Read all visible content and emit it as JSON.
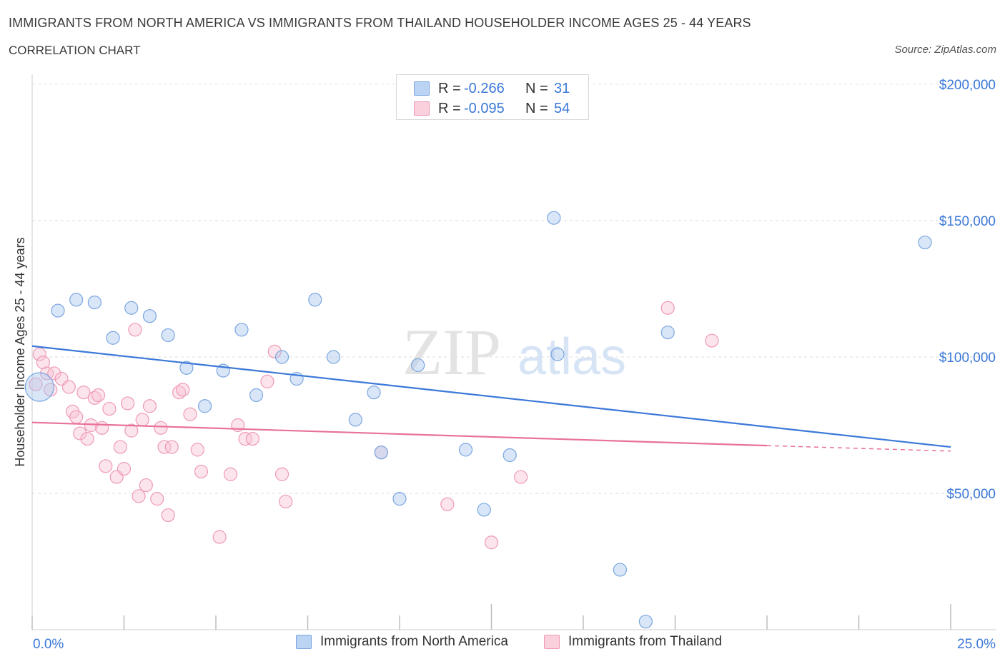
{
  "header": {
    "title": "IMMIGRANTS FROM NORTH AMERICA VS IMMIGRANTS FROM THAILAND HOUSEHOLDER INCOME AGES 25 - 44 YEARS",
    "subtitle": "CORRELATION CHART",
    "source": "Source: ZipAtlas.com"
  },
  "watermark": {
    "zip": "ZIP",
    "atlas": "atlas"
  },
  "legend": {
    "rows": [
      {
        "r_label": "R =",
        "r_value": "-0.266",
        "n_label": "N =",
        "n_value": "31",
        "color": "#aac8f0",
        "stroke": "#7aa6e0"
      },
      {
        "r_label": "R =",
        "r_value": "-0.095",
        "n_label": "N =",
        "n_value": "54",
        "color": "#f8c4d4",
        "stroke": "#ee9ab5"
      }
    ]
  },
  "bottom_legend": {
    "items": [
      {
        "label": "Immigrants from North America",
        "color": "#aac8f0",
        "stroke": "#7aa6e0"
      },
      {
        "label": "Immigrants from Thailand",
        "color": "#f8c4d4",
        "stroke": "#ee9ab5"
      }
    ]
  },
  "chart_data": {
    "type": "scatter",
    "title": "IMMIGRANTS FROM NORTH AMERICA VS IMMIGRANTS FROM THAILAND HOUSEHOLDER INCOME AGES 25 - 44 YEARS",
    "xlabel": "",
    "ylabel": "Householder Income Ages 25 - 44 years",
    "xlim": [
      0,
      25
    ],
    "ylim": [
      0,
      200000
    ],
    "x_tick_labels": [
      "0.0%",
      "25.0%"
    ],
    "y_ticks": [
      50000,
      100000,
      150000,
      200000
    ],
    "y_tick_labels": [
      "$50,000",
      "$100,000",
      "$150,000",
      "$200,000"
    ],
    "grid": true,
    "legend_placement": "top-center",
    "colors": {
      "north_america": "#3b78d8",
      "thailand": "#e8709a"
    },
    "series": [
      {
        "name": "Immigrants from North America",
        "r": -0.266,
        "n": 31,
        "trend": {
          "x": [
            0,
            25
          ],
          "y": [
            104000,
            67000
          ]
        },
        "points": [
          [
            0.2,
            89000,
            "big"
          ],
          [
            0.7,
            117000
          ],
          [
            1.2,
            121000
          ],
          [
            1.7,
            120000
          ],
          [
            2.2,
            107000
          ],
          [
            2.7,
            118000
          ],
          [
            3.2,
            115000
          ],
          [
            3.7,
            108000
          ],
          [
            4.2,
            96000
          ],
          [
            4.7,
            82000
          ],
          [
            5.2,
            95000
          ],
          [
            5.7,
            110000
          ],
          [
            6.1,
            86000
          ],
          [
            6.8,
            100000
          ],
          [
            7.2,
            92000
          ],
          [
            7.7,
            121000
          ],
          [
            8.2,
            100000
          ],
          [
            8.8,
            77000
          ],
          [
            9.3,
            87000
          ],
          [
            9.5,
            65000
          ],
          [
            10.0,
            48000
          ],
          [
            10.5,
            97000
          ],
          [
            11.8,
            66000
          ],
          [
            12.3,
            44000
          ],
          [
            13.0,
            64000
          ],
          [
            14.2,
            151000
          ],
          [
            14.3,
            101000
          ],
          [
            16.0,
            22000
          ],
          [
            16.7,
            3000
          ],
          [
            17.3,
            109000
          ],
          [
            24.3,
            142000
          ]
        ]
      },
      {
        "name": "Immigrants from Thailand",
        "r": -0.095,
        "n": 54,
        "trend": {
          "x": [
            0,
            20
          ],
          "y": [
            76000,
            67500
          ]
        },
        "trend_dashed": {
          "x": [
            20,
            25
          ],
          "y": [
            67500,
            65500
          ]
        },
        "points": [
          [
            0.2,
            101000
          ],
          [
            0.3,
            98000
          ],
          [
            0.4,
            94000
          ],
          [
            0.5,
            88000
          ],
          [
            0.6,
            94000
          ],
          [
            0.8,
            92000
          ],
          [
            1.0,
            89000
          ],
          [
            1.1,
            80000
          ],
          [
            1.2,
            78000
          ],
          [
            1.3,
            72000
          ],
          [
            1.4,
            87000
          ],
          [
            1.5,
            70000
          ],
          [
            1.6,
            75000
          ],
          [
            1.7,
            85000
          ],
          [
            1.8,
            86000
          ],
          [
            1.9,
            74000
          ],
          [
            2.0,
            60000
          ],
          [
            2.1,
            81000
          ],
          [
            2.3,
            56000
          ],
          [
            2.4,
            67000
          ],
          [
            2.5,
            59000
          ],
          [
            2.6,
            83000
          ],
          [
            2.7,
            73000
          ],
          [
            2.8,
            110000
          ],
          [
            2.9,
            49000
          ],
          [
            3.0,
            77000
          ],
          [
            3.1,
            53000
          ],
          [
            3.2,
            82000
          ],
          [
            3.4,
            48000
          ],
          [
            3.5,
            74000
          ],
          [
            3.6,
            67000
          ],
          [
            3.7,
            42000
          ],
          [
            3.8,
            67000
          ],
          [
            4.0,
            87000
          ],
          [
            4.1,
            88000
          ],
          [
            4.3,
            79000
          ],
          [
            4.5,
            66000
          ],
          [
            4.6,
            58000
          ],
          [
            5.1,
            34000
          ],
          [
            5.4,
            57000
          ],
          [
            5.6,
            75000
          ],
          [
            5.8,
            70000
          ],
          [
            6.0,
            70000
          ],
          [
            6.4,
            91000
          ],
          [
            6.6,
            102000
          ],
          [
            6.8,
            57000
          ],
          [
            6.9,
            47000
          ],
          [
            9.5,
            65000
          ],
          [
            11.3,
            46000
          ],
          [
            12.5,
            32000
          ],
          [
            13.3,
            56000
          ],
          [
            17.3,
            118000
          ],
          [
            18.5,
            106000
          ],
          [
            0.1,
            90000
          ]
        ]
      }
    ]
  }
}
